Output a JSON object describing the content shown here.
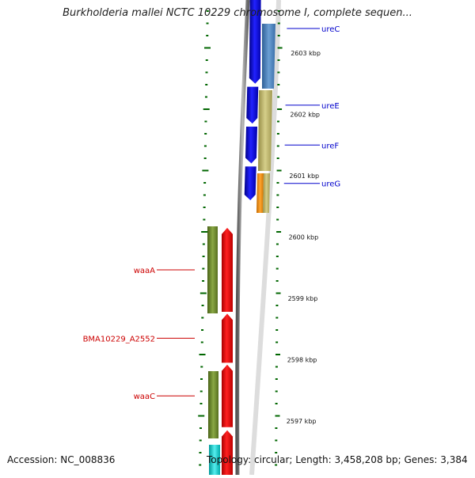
{
  "title": "Burkholderia mallei NCTC 10229 chromosome I, complete sequen...",
  "accession": "Accession: NC_008836",
  "topology": "Topology: circular; Length: 3,458,208 bp; Genes: 3,384",
  "ticks": [
    {
      "label": "2603 kbp",
      "bp": 2603000
    },
    {
      "label": "2602 kbp",
      "bp": 2602000
    },
    {
      "label": "2601 kbp",
      "bp": 2601000
    },
    {
      "label": "2600 kbp",
      "bp": 2600000
    },
    {
      "label": "2599 kbp",
      "bp": 2599000
    },
    {
      "label": "2598 kbp",
      "bp": 2598000
    },
    {
      "label": "2597 kbp",
      "bp": 2597000
    }
  ],
  "genes": [
    {
      "name": "ureC",
      "strand": "reverse",
      "color": "#0000ee",
      "start": 2602500,
      "end": 2604300,
      "labeled": true
    },
    {
      "name": "ureE",
      "strand": "reverse",
      "color": "#0000ee",
      "start": 2601850,
      "end": 2602450,
      "labeled": true
    },
    {
      "name": "ureF",
      "strand": "reverse",
      "color": "#0000ee",
      "start": 2601200,
      "end": 2601800,
      "labeled": true
    },
    {
      "name": "ureG",
      "strand": "reverse",
      "color": "#0000ee",
      "start": 2600600,
      "end": 2601150,
      "labeled": true
    },
    {
      "name": "waaA",
      "strand": "forward",
      "color": "#ee0000",
      "start": 2598780,
      "end": 2600150,
      "labeled": true
    },
    {
      "name": "BMA10229_A2552",
      "strand": "forward",
      "color": "#ee0000",
      "start": 2597950,
      "end": 2598750,
      "labeled": true
    },
    {
      "name": "waaC",
      "strand": "forward",
      "color": "#ee0000",
      "start": 2596900,
      "end": 2597920,
      "labeled": true
    },
    {
      "name": "",
      "strand": "forward",
      "color": "#ee0000",
      "start": 2596000,
      "end": 2596850,
      "labeled": false
    }
  ],
  "colors": {
    "reverse_label": "#0000cc",
    "forward_label": "#cc0000",
    "tick": "#006600",
    "cog_blue": "#4a7eb5",
    "cog_khaki": "#bdb56a",
    "cog_orange": "#ee8800",
    "cog_olive": "#6b8a2a",
    "cog_cyan": "#00cccc",
    "backbone": "#888888"
  }
}
